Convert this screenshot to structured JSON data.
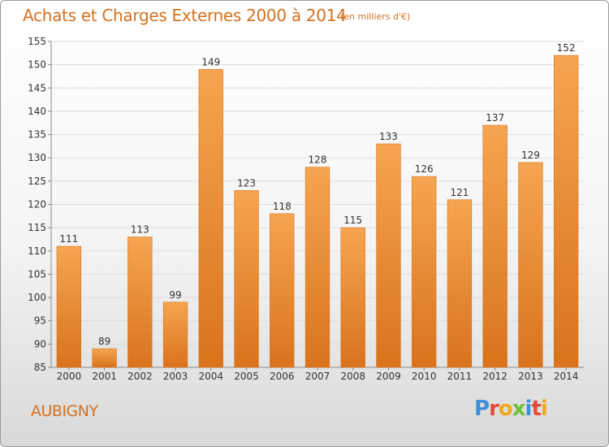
{
  "header": {
    "title": "Achats et Charges Externes 2000 à 2014",
    "unit": "(en milliers d'€)"
  },
  "footer": {
    "commune": "AUBIGNY",
    "brand": "Proxiti"
  },
  "colors": {
    "accent": "#d4711f",
    "bar_light": "#f6a550",
    "bar_dark": "#d9731c",
    "logo_letters": [
      "#3b8fd6",
      "#e24b3a",
      "#f2a81d",
      "#6cbf3b",
      "#3b8fd6",
      "#e24b3a",
      "#f2a81d"
    ]
  },
  "chart_data": {
    "type": "bar",
    "categories": [
      "2000",
      "2001",
      "2002",
      "2003",
      "2004",
      "2005",
      "2006",
      "2007",
      "2008",
      "2009",
      "2010",
      "2011",
      "2012",
      "2013",
      "2014"
    ],
    "values": [
      111,
      89,
      113,
      99,
      149,
      123,
      118,
      128,
      115,
      133,
      126,
      121,
      137,
      129,
      152
    ],
    "title": "Achats et Charges Externes 2000 à 2014",
    "xlabel": "",
    "ylabel": "",
    "ylim": [
      85,
      155
    ],
    "yticks": [
      85,
      90,
      95,
      100,
      105,
      110,
      115,
      120,
      125,
      130,
      135,
      140,
      145,
      150,
      155
    ],
    "grid": true,
    "data_labels": true
  }
}
